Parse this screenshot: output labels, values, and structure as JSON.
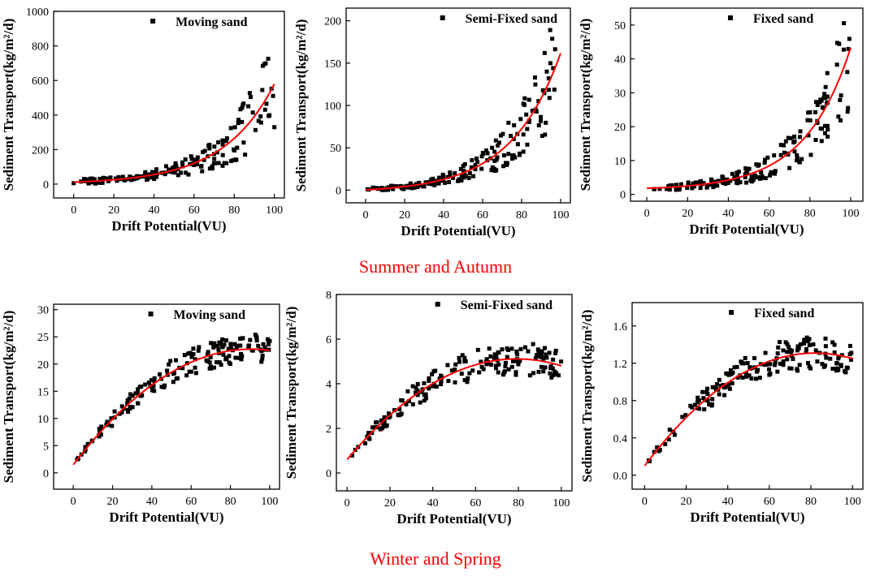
{
  "season_labels": [
    "Summer and Autumn",
    "Winter and Spring"
  ],
  "colors": {
    "points": "#000000",
    "fit": "#ff0000",
    "axis": "#000000",
    "season": "#ff0000"
  },
  "chart_data": [
    {
      "type": "scatter",
      "title": "Moving sand",
      "legend": "Moving sand",
      "xlabel": "Drift Potential(VU)",
      "ylabel": "Sediment Transport(kg/m²/d)",
      "xlim": [
        -10,
        105
      ],
      "ylim": [
        -80,
        1000
      ],
      "xticks": [
        0,
        20,
        40,
        60,
        80,
        100
      ],
      "yticks": [
        0,
        200,
        400,
        600,
        800,
        1000
      ],
      "fit": {
        "kind": "exp",
        "a": 11.5,
        "b": 0.0392,
        "c": 0
      },
      "scatter": {
        "n": 170,
        "xmax": 100,
        "noise": 0.5,
        "floor": 0,
        "seed": 11
      }
    },
    {
      "type": "scatter",
      "title": "Semi-Fixed sand",
      "legend": "Semi-Fixed sand",
      "xlabel": "Drift Potential(VU)",
      "ylabel": "Sediment Transport(kg/m²/d)",
      "xlim": [
        -10,
        105
      ],
      "ylim": [
        -15,
        215
      ],
      "xticks": [
        0,
        20,
        40,
        60,
        80,
        100
      ],
      "yticks": [
        0,
        50,
        100,
        150,
        200
      ],
      "fit": {
        "kind": "exp",
        "a": 3.3,
        "b": 0.0391,
        "c": -3
      },
      "scatter": {
        "n": 170,
        "xmax": 100,
        "noise": 0.45,
        "floor": 0,
        "seed": 23
      }
    },
    {
      "type": "scatter",
      "title": "Fixed sand",
      "legend": "Fixed sand",
      "xlabel": "Drift Potential(VU)",
      "ylabel": "Sediment Transport(kg/m²/d)",
      "xlim": [
        -8,
        106
      ],
      "ylim": [
        -2,
        55
      ],
      "xticks": [
        0,
        20,
        40,
        60,
        80,
        100
      ],
      "yticks": [
        0,
        10,
        20,
        30,
        40,
        50
      ],
      "fit": {
        "kind": "exp",
        "a": 0.5,
        "b": 0.0443,
        "c": 1.3
      },
      "scatter": {
        "n": 170,
        "xmax": 100,
        "noise": 0.4,
        "floor": 0,
        "seed": 37
      }
    },
    {
      "type": "scatter",
      "title": "Moving sand",
      "legend": "Moving sand",
      "xlabel": "Drift Potential(VU)",
      "ylabel": "Sediment Transport(kg/m²/d)",
      "xlim": [
        -10,
        105
      ],
      "ylim": [
        -3,
        31
      ],
      "xticks": [
        0,
        20,
        40,
        60,
        80,
        100
      ],
      "yticks": [
        0,
        5,
        10,
        15,
        20,
        25,
        30
      ],
      "fit": {
        "kind": "poly",
        "a": -0.0026,
        "b": 0.47,
        "c": 1.5
      },
      "scatter": {
        "n": 170,
        "xmax": 100,
        "noise": 0.12,
        "floor": 0,
        "seed": 53
      }
    },
    {
      "type": "scatter",
      "title": "Semi-Fixed sand",
      "legend": "Semi-Fixed sand",
      "xlabel": "Drift Potential(VU)",
      "ylabel": "Sediment Transport(kg/m²/d)",
      "xlim": [
        -5,
        105
      ],
      "ylim": [
        -0.8,
        8
      ],
      "xticks": [
        0,
        20,
        40,
        60,
        80,
        100
      ],
      "yticks": [
        0,
        2,
        4,
        6,
        8
      ],
      "fit": {
        "kind": "poly",
        "a": -0.00072,
        "b": 0.114,
        "c": 0.6
      },
      "scatter": {
        "n": 170,
        "xmax": 100,
        "noise": 0.14,
        "floor": 0,
        "seed": 71
      }
    },
    {
      "type": "scatter",
      "title": "Fixed sand",
      "legend": "Fixed sand",
      "xlabel": "Drift Potential(VU)",
      "ylabel": "Sediment Transport(kg/m²/d)",
      "xlim": [
        -6,
        105
      ],
      "ylim": [
        -0.15,
        1.85
      ],
      "xticks": [
        0,
        20,
        40,
        60,
        80,
        100
      ],
      "yticks": [
        0.0,
        0.4,
        0.8,
        1.2,
        1.6
      ],
      "fit": {
        "kind": "poly",
        "a": -0.00018,
        "b": 0.0295,
        "c": 0.1
      },
      "scatter": {
        "n": 170,
        "xmax": 100,
        "noise": 0.14,
        "floor": 0,
        "seed": 89
      }
    }
  ]
}
